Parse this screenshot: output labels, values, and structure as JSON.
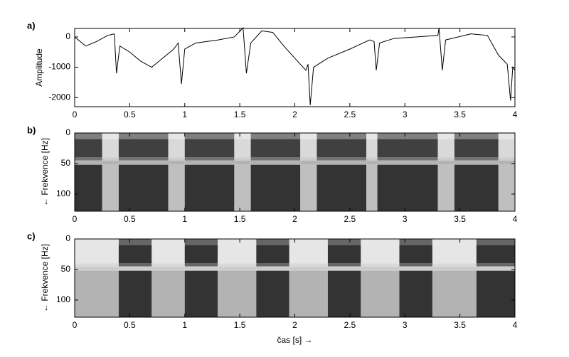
{
  "chart_data": [
    {
      "type": "line",
      "panel_label": "a)",
      "y_label": "Amplitude",
      "color": "#000000",
      "x": [
        0,
        0.1,
        0.2,
        0.3,
        0.36,
        0.38,
        0.41,
        0.5,
        0.6,
        0.7,
        0.8,
        0.9,
        0.94,
        0.97,
        1.0,
        1.1,
        1.3,
        1.45,
        1.53,
        1.56,
        1.6,
        1.7,
        1.8,
        1.9,
        2.0,
        2.1,
        2.12,
        2.14,
        2.17,
        2.3,
        2.5,
        2.68,
        2.72,
        2.74,
        2.77,
        2.9,
        3.1,
        3.3,
        3.31,
        3.34,
        3.37,
        3.6,
        3.75,
        3.85,
        3.93,
        3.96,
        3.98,
        4.0
      ],
      "y": [
        0,
        -300,
        -150,
        50,
        100,
        -1200,
        -300,
        -500,
        -800,
        -1000,
        -700,
        -400,
        -200,
        -1550,
        -400,
        -200,
        -100,
        0,
        300,
        -1200,
        -200,
        200,
        150,
        -300,
        -700,
        -1100,
        -900,
        -2250,
        -1000,
        -700,
        -400,
        -100,
        -150,
        -1100,
        -200,
        -50,
        0,
        50,
        300,
        -1100,
        -100,
        100,
        50,
        -600,
        -900,
        -2100,
        -1000,
        -1100
      ],
      "xlim": [
        0,
        4
      ],
      "xticks": [
        0,
        0.5,
        1,
        1.5,
        2,
        2.5,
        3,
        3.5,
        4
      ],
      "ylim": [
        -2300,
        280
      ],
      "yticks": [
        0,
        -1000,
        -2000
      ]
    },
    {
      "type": "heatmap",
      "panel_label": "b)",
      "y_label": "← Frekvence [Hz]",
      "x_edges": [
        0,
        0.25,
        0.4,
        0.85,
        1.0,
        1.45,
        1.6,
        2.05,
        2.2,
        2.65,
        2.75,
        3.3,
        3.45,
        3.85,
        4.0
      ],
      "y_edges": [
        0,
        10,
        40,
        45,
        52,
        128
      ],
      "values": [
        [
          0.5,
          0.1,
          0.5,
          0.1,
          0.5,
          0.1,
          0.5,
          0.1,
          0.5,
          0.1,
          0.5,
          0.1,
          0.5,
          0.1
        ],
        [
          0.75,
          0.15,
          0.75,
          0.15,
          0.75,
          0.15,
          0.75,
          0.15,
          0.75,
          0.15,
          0.75,
          0.15,
          0.75,
          0.15
        ],
        [
          0.55,
          0.2,
          0.55,
          0.2,
          0.55,
          0.2,
          0.55,
          0.2,
          0.55,
          0.2,
          0.55,
          0.2,
          0.55,
          0.2
        ],
        [
          0.3,
          0.3,
          0.3,
          0.3,
          0.3,
          0.3,
          0.3,
          0.3,
          0.3,
          0.3,
          0.3,
          0.3,
          0.3,
          0.3
        ],
        [
          0.8,
          0.25,
          0.8,
          0.25,
          0.8,
          0.25,
          0.8,
          0.25,
          0.8,
          0.25,
          0.8,
          0.25,
          0.8,
          0.25
        ]
      ],
      "colormap": "gray",
      "xlim": [
        0,
        4
      ],
      "xticks": [
        0,
        0.5,
        1,
        1.5,
        2,
        2.5,
        3,
        3.5,
        4
      ],
      "ylim": [
        128,
        0
      ],
      "yticks": [
        0,
        50,
        100
      ]
    },
    {
      "type": "heatmap",
      "panel_label": "c)",
      "y_label": "← Frekvence [Hz]",
      "x_label": "čas [s] →",
      "x_edges": [
        0,
        0.4,
        0.7,
        1.0,
        1.3,
        1.65,
        1.95,
        2.3,
        2.6,
        2.95,
        3.25,
        3.65,
        4.0
      ],
      "y_edges": [
        0,
        10,
        40,
        45,
        52,
        128
      ],
      "values": [
        [
          0.1,
          0.6,
          0.1,
          0.6,
          0.1,
          0.6,
          0.1,
          0.6,
          0.1,
          0.6,
          0.1,
          0.6
        ],
        [
          0.1,
          0.8,
          0.1,
          0.8,
          0.1,
          0.8,
          0.1,
          0.8,
          0.1,
          0.8,
          0.1,
          0.8
        ],
        [
          0.15,
          0.6,
          0.15,
          0.6,
          0.15,
          0.6,
          0.15,
          0.6,
          0.15,
          0.6,
          0.15,
          0.6
        ],
        [
          0.2,
          0.2,
          0.2,
          0.2,
          0.2,
          0.2,
          0.2,
          0.2,
          0.2,
          0.2,
          0.2,
          0.2
        ],
        [
          0.3,
          0.8,
          0.3,
          0.8,
          0.3,
          0.8,
          0.3,
          0.8,
          0.3,
          0.8,
          0.3,
          0.8
        ]
      ],
      "colormap": "gray",
      "xlim": [
        0,
        4
      ],
      "xticks": [
        0,
        0.5,
        1,
        1.5,
        2,
        2.5,
        3,
        3.5,
        4
      ],
      "ylim": [
        128,
        0
      ],
      "yticks": [
        0,
        50,
        100
      ]
    }
  ]
}
